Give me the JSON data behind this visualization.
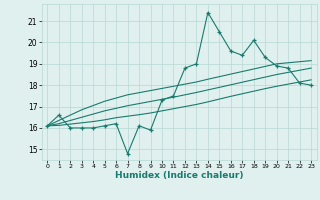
{
  "x_data": [
    0,
    1,
    2,
    3,
    4,
    5,
    6,
    7,
    8,
    9,
    10,
    11,
    12,
    13,
    14,
    15,
    16,
    17,
    18,
    19,
    20,
    21,
    22,
    23
  ],
  "y_main": [
    16.1,
    16.6,
    16.0,
    16.0,
    16.0,
    16.1,
    16.2,
    14.8,
    16.1,
    15.9,
    17.3,
    17.5,
    18.8,
    19.0,
    21.4,
    20.5,
    19.6,
    19.4,
    20.1,
    19.3,
    18.9,
    18.8,
    18.1,
    18.0
  ],
  "y_reg1": [
    16.1,
    16.35,
    16.6,
    16.85,
    17.05,
    17.25,
    17.4,
    17.55,
    17.65,
    17.75,
    17.85,
    17.95,
    18.05,
    18.15,
    18.28,
    18.4,
    18.52,
    18.64,
    18.76,
    18.88,
    19.0,
    19.05,
    19.1,
    19.15
  ],
  "y_reg2": [
    16.1,
    16.2,
    16.35,
    16.5,
    16.65,
    16.8,
    16.92,
    17.04,
    17.14,
    17.24,
    17.34,
    17.44,
    17.55,
    17.66,
    17.78,
    17.9,
    18.02,
    18.14,
    18.26,
    18.38,
    18.5,
    18.6,
    18.7,
    18.8
  ],
  "y_reg3": [
    16.1,
    16.12,
    16.18,
    16.24,
    16.3,
    16.38,
    16.48,
    16.55,
    16.62,
    16.7,
    16.8,
    16.9,
    17.0,
    17.1,
    17.22,
    17.35,
    17.48,
    17.6,
    17.72,
    17.84,
    17.95,
    18.05,
    18.15,
    18.25
  ],
  "line_color": "#1a7a6e",
  "bg_color": "#dff0ef",
  "grid_color": "#b8d8d4",
  "xlabel": "Humidex (Indice chaleur)",
  "ylim": [
    14.5,
    21.8
  ],
  "xlim": [
    -0.5,
    23.5
  ],
  "yticks": [
    15,
    16,
    17,
    18,
    19,
    20,
    21
  ],
  "xticks": [
    0,
    1,
    2,
    3,
    4,
    5,
    6,
    7,
    8,
    9,
    10,
    11,
    12,
    13,
    14,
    15,
    16,
    17,
    18,
    19,
    20,
    21,
    22,
    23
  ]
}
